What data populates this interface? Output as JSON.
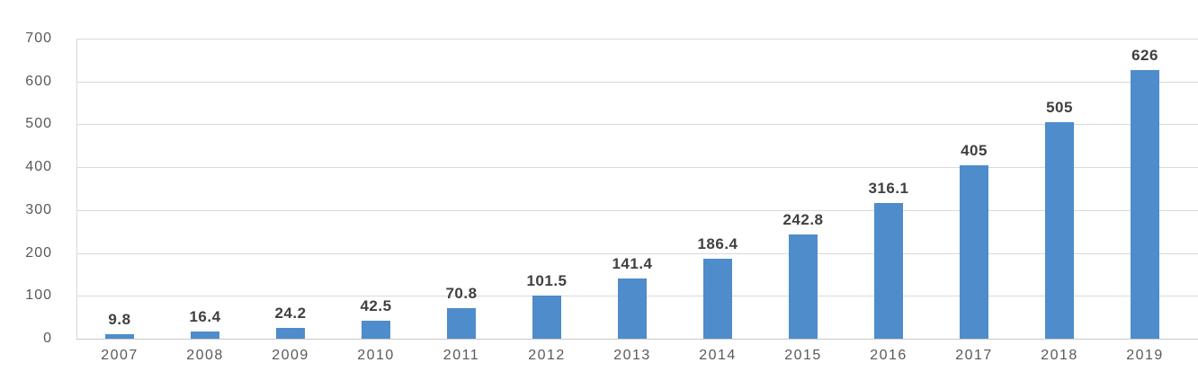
{
  "chart_data": {
    "type": "bar",
    "title": "",
    "xlabel": "",
    "ylabel": "",
    "categories": [
      "2007",
      "2008",
      "2009",
      "2010",
      "2011",
      "2012",
      "2013",
      "2014",
      "2015",
      "2016",
      "2017",
      "2018",
      "2019"
    ],
    "values": [
      9.8,
      16.4,
      24.2,
      42.5,
      70.8,
      101.5,
      141.4,
      186.4,
      242.8,
      316.1,
      405,
      505,
      626
    ],
    "data_labels": [
      "9.8",
      "16.4",
      "24.2",
      "42.5",
      "70.8",
      "101.5",
      "141.4",
      "186.4",
      "242.8",
      "316.1",
      "405",
      "505",
      "626"
    ],
    "ylim": [
      0,
      700
    ],
    "yticks": [
      0,
      100,
      200,
      300,
      400,
      500,
      600,
      700
    ],
    "ytick_labels": [
      "0",
      "100",
      "200",
      "300",
      "400",
      "500",
      "600",
      "700"
    ],
    "grid": true,
    "legend_position": "none",
    "bar_color": "#4e8ccb",
    "gridline_color": "#d9d9d9",
    "axis_label_color": "#595959",
    "data_label_color": "#404040",
    "background_color": "#ffffff"
  }
}
